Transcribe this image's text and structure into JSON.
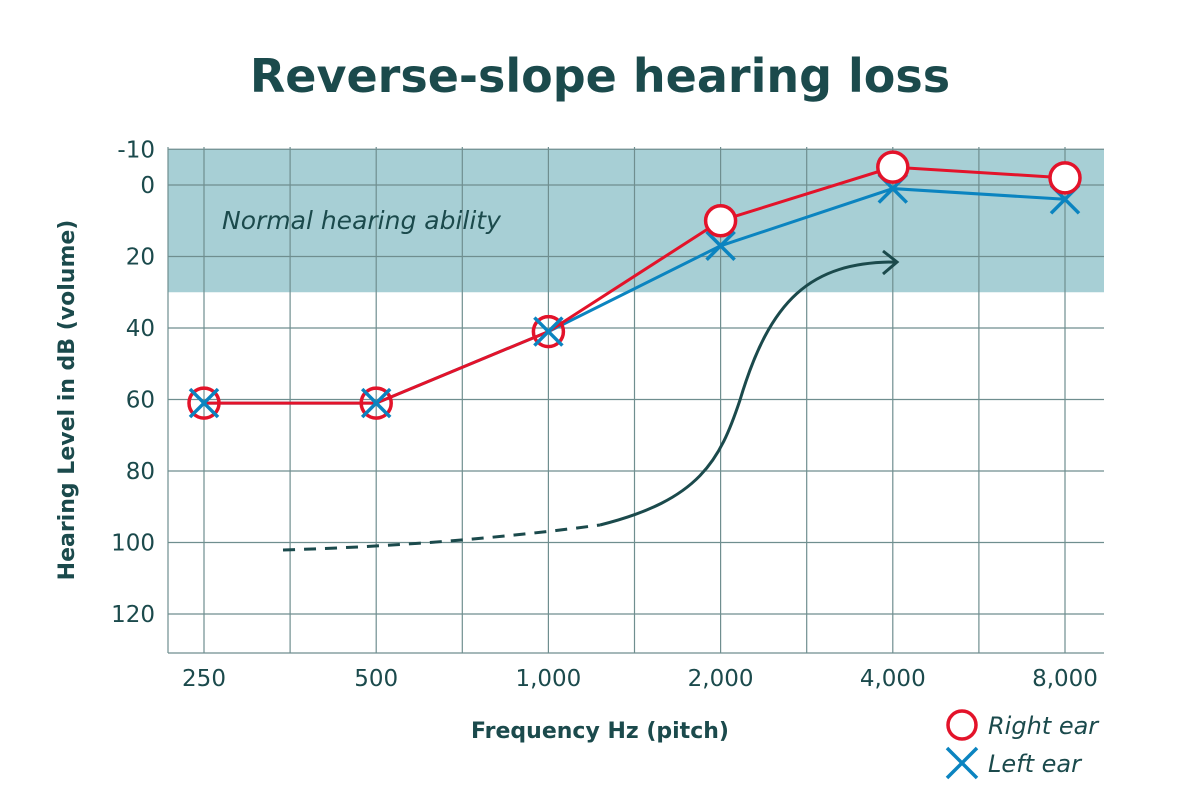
{
  "chart_data": {
    "type": "line",
    "title": "Reverse-slope hearing loss",
    "xlabel": "Frequency Hz (pitch)",
    "ylabel": "Hearing Level in dB (volume)",
    "x_scale": "log2",
    "categories": [
      "250",
      "500",
      "1,000",
      "2,000",
      "4,000",
      "8,000"
    ],
    "x": [
      250,
      500,
      1000,
      2000,
      4000,
      8000
    ],
    "yticks": [
      "-10",
      "0",
      "20",
      "40",
      "60",
      "80",
      "100",
      "120"
    ],
    "ylim": [
      130,
      -10
    ],
    "y_inverted": true,
    "grid": true,
    "shaded_region": {
      "label": "Normal hearing ability",
      "range": [
        -10,
        30
      ],
      "color": "#a7cfd5"
    },
    "series": [
      {
        "name": "Right ear",
        "marker": "circle",
        "color": "#e3132a",
        "values": [
          61,
          61,
          41,
          10,
          -5,
          -2
        ]
      },
      {
        "name": "Left ear",
        "marker": "x",
        "color": "#0b84c0",
        "values": [
          61,
          61,
          41,
          17,
          1,
          4
        ]
      }
    ],
    "annotation": "arrow",
    "legend_position": "bottom-right"
  }
}
